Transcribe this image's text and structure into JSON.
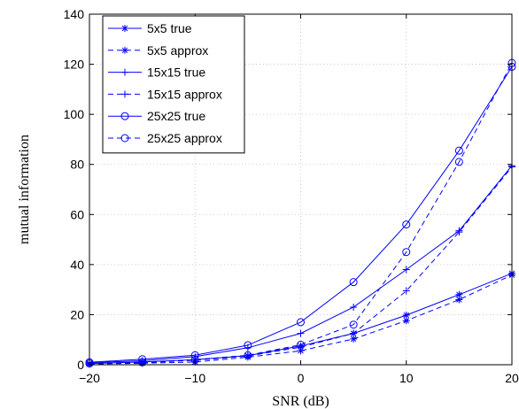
{
  "chart_data": {
    "type": "line",
    "xlabel": "SNR (dB)",
    "ylabel": "mutual information",
    "xlim": [
      -20,
      20
    ],
    "ylim": [
      0,
      140
    ],
    "x_ticks": [
      -20,
      -10,
      0,
      10,
      20
    ],
    "y_ticks": [
      0,
      20,
      40,
      60,
      80,
      100,
      120,
      140
    ],
    "x_tick_labels": [
      "−20",
      "−10",
      "0",
      "10",
      "20"
    ],
    "y_tick_labels": [
      "0",
      "20",
      "40",
      "60",
      "80",
      "100",
      "120",
      "140"
    ],
    "grid": true,
    "legend_position": "top-left",
    "line_color": "#0000ff",
    "x": [
      -20,
      -15,
      -10,
      -5,
      0,
      5,
      10,
      15,
      20
    ],
    "series": [
      {
        "name": "5x5 true",
        "style": "solid",
        "marker": "asterisk",
        "values": [
          0.5,
          1.1,
          2.0,
          3.6,
          7.5,
          12.5,
          19.8,
          28.0,
          36.5
        ]
      },
      {
        "name": "5x5 approx",
        "style": "dashed",
        "marker": "asterisk",
        "values": [
          0.3,
          0.6,
          1.1,
          3.0,
          5.6,
          10.3,
          17.6,
          26.0,
          35.8
        ]
      },
      {
        "name": "15x15 true",
        "style": "solid",
        "marker": "plus",
        "values": [
          0.8,
          1.6,
          3.2,
          6.8,
          12.5,
          23.0,
          38.0,
          53.5,
          79.5
        ]
      },
      {
        "name": "15x15 approx",
        "style": "dashed",
        "marker": "plus",
        "values": [
          0.4,
          0.8,
          1.8,
          3.5,
          7.0,
          12.5,
          29.5,
          53.0,
          79.0
        ]
      },
      {
        "name": "25x25 true",
        "style": "solid",
        "marker": "circle",
        "values": [
          1.0,
          2.2,
          3.8,
          7.8,
          17.0,
          33.0,
          56.0,
          85.5,
          119.0
        ]
      },
      {
        "name": "25x25 approx",
        "style": "dashed",
        "marker": "circle",
        "values": [
          0.5,
          1.0,
          2.0,
          3.8,
          8.0,
          16.0,
          45.0,
          81.0,
          120.5
        ]
      }
    ]
  }
}
